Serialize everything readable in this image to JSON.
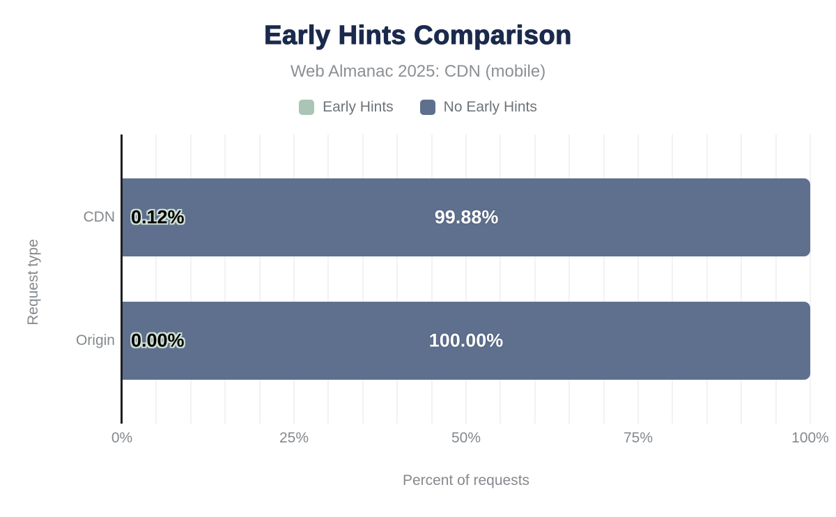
{
  "chart_data": {
    "type": "bar",
    "orientation": "horizontal",
    "stacked": true,
    "title": "Early Hints Comparison",
    "subtitle": "Web Almanac 2025: CDN (mobile)",
    "categories": [
      "CDN",
      "Origin"
    ],
    "series": [
      {
        "name": "Early Hints",
        "color": "#aac5b5",
        "values": [
          0.12,
          0.0
        ],
        "data_labels": [
          "0.12%",
          "0.00%"
        ]
      },
      {
        "name": "No Early Hints",
        "color": "#5e708e",
        "values": [
          99.88,
          100.0
        ],
        "data_labels": [
          "99.88%",
          "100.00%"
        ]
      }
    ],
    "xlabel": "Percent of requests",
    "ylabel": "Request type",
    "xlim": [
      0,
      100
    ],
    "xticks": {
      "values": [
        0,
        25,
        50,
        75,
        100
      ],
      "labels": [
        "0%",
        "25%",
        "50%",
        "75%",
        "100%"
      ]
    },
    "grid": {
      "minor_step_percent": 5,
      "color": "#f2f2f2",
      "direction": "vertical"
    },
    "legend_position": "top",
    "colors": {
      "title": "#1b2a4c",
      "subtitle": "#8b9095",
      "axis_text": "#85898d",
      "legend_text": "#6e7378",
      "axis_line": "#1f1f1f",
      "background": "#ffffff",
      "black_label_outline": "#cfe0d4"
    }
  }
}
